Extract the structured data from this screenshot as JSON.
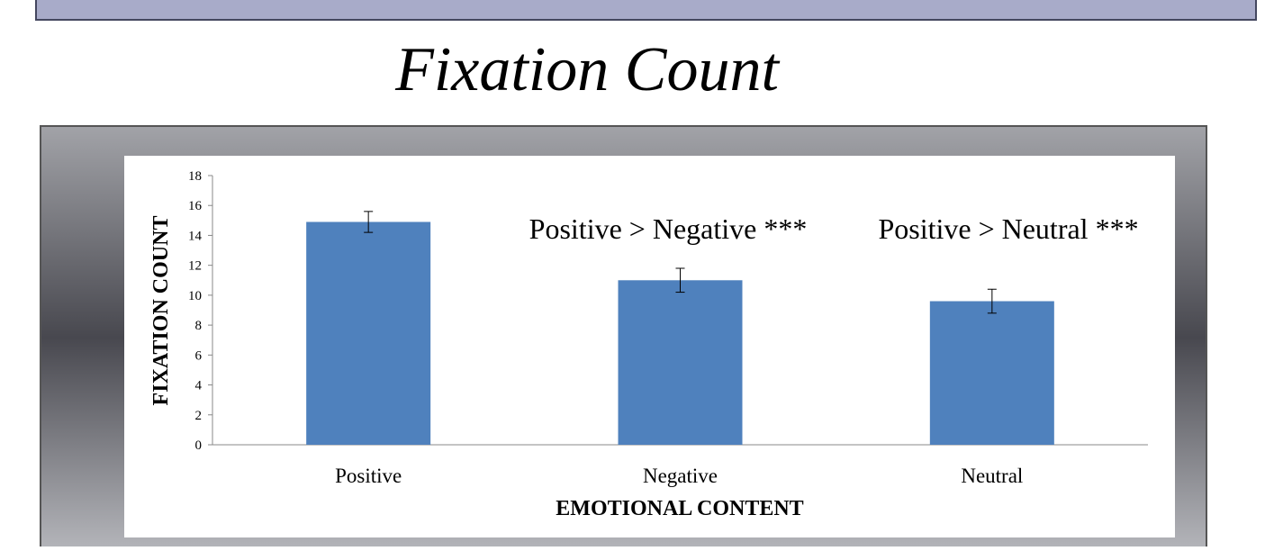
{
  "chart_data": {
    "type": "bar",
    "title": "Fixation Count",
    "x_label": "EMOTIONAL CONTENT",
    "y_label": "FIXATION COUNT",
    "categories": [
      "Positive",
      "Negative",
      "Neutral"
    ],
    "values": [
      14.9,
      11.0,
      9.6
    ],
    "errors": [
      0.7,
      0.8,
      0.8
    ],
    "color": "#4f81bd",
    "ylim": [
      0,
      18
    ],
    "yticks": [
      0,
      2,
      4,
      6,
      8,
      10,
      12,
      14,
      16,
      18
    ],
    "grid": false,
    "annotations": [
      "Positive > Negative ***",
      "Positive > Neutral ***"
    ]
  }
}
